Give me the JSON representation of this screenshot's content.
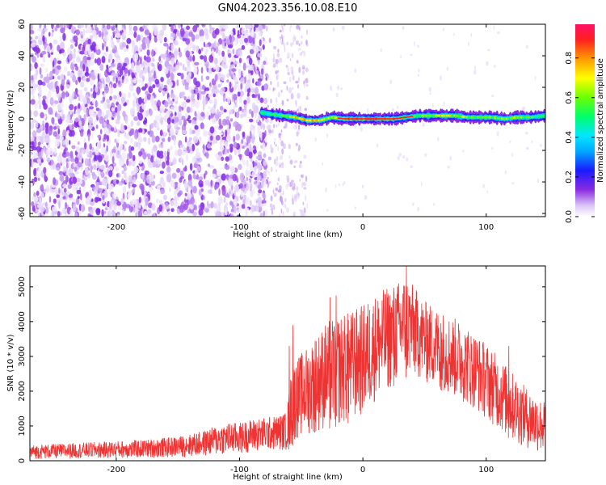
{
  "figure": {
    "title": "GN04.2023.356.10.08.E10"
  },
  "chart_data": [
    {
      "type": "heatmap",
      "title": "",
      "xlabel": "Height of straight line (km)",
      "ylabel": "Frequency (Hz)",
      "xlim": [
        -270,
        148
      ],
      "ylim": [
        -62,
        60
      ],
      "xticks": [
        -200,
        -100,
        0,
        100
      ],
      "xtick_labels": [
        "-200",
        "-100",
        "0",
        "100"
      ],
      "yticks": [
        -60,
        -40,
        -20,
        0,
        20,
        40,
        60
      ],
      "ytick_labels": [
        "-60",
        "-40",
        "-20",
        "0",
        "20",
        "40",
        "60"
      ],
      "grid": false,
      "colorbar": {
        "label": "Normalized spectral amplitude",
        "range": [
          0,
          0.97
        ],
        "ticks": [
          0,
          0.2,
          0.4,
          0.6,
          0.8
        ],
        "tick_labels": [
          "0.0",
          "0.2",
          "0.4",
          "0.6",
          "0.8"
        ],
        "colormap": "gist_rainbow_reversed"
      },
      "noise_region_x": [
        -270,
        -78
      ],
      "sparse_region_x": [
        -78,
        -45
      ],
      "signal_trace": {
        "x": [
          -82,
          -75,
          -65,
          -55,
          -45,
          -35,
          -25,
          -15,
          -5,
          5,
          15,
          25,
          35,
          45,
          55,
          65,
          75,
          85,
          95,
          105,
          115,
          125,
          135,
          148
        ],
        "frequency": [
          4,
          3,
          2,
          1,
          -1,
          -1,
          1,
          0,
          0,
          0,
          0,
          0,
          1,
          2,
          2,
          2,
          2,
          1,
          1,
          1,
          0,
          1,
          1,
          2
        ],
        "amplitude": [
          0.55,
          0.5,
          0.55,
          0.75,
          0.8,
          0.7,
          0.65,
          0.8,
          0.85,
          0.9,
          0.9,
          0.85,
          0.55,
          0.6,
          0.65,
          0.7,
          0.65,
          0.6,
          0.55,
          0.6,
          0.65,
          0.6,
          0.55,
          0.5
        ]
      }
    },
    {
      "type": "line",
      "title": "",
      "xlabel": "Height of straight line (km)",
      "ylabel": "SNR (10 * v/v)",
      "xlim": [
        -270,
        148
      ],
      "ylim": [
        0,
        5600
      ],
      "xticks": [
        -200,
        -100,
        0,
        100
      ],
      "xtick_labels": [
        "-200",
        "-100",
        "0",
        "100"
      ],
      "yticks": [
        0,
        1000,
        2000,
        3000,
        4000,
        5000
      ],
      "ytick_labels": [
        "0",
        "1000",
        "2000",
        "3000",
        "4000",
        "5000"
      ],
      "grid": false,
      "series": [
        {
          "color": "#ee3333",
          "envelope": {
            "x": [
              -270,
              -240,
              -210,
              -180,
              -150,
              -130,
              -120,
              -110,
              -100,
              -90,
              -80,
              -70,
              -62,
              -58,
              -55,
              -50,
              -40,
              -30,
              -20,
              -10,
              0,
              10,
              20,
              30,
              35,
              40,
              50,
              60,
              70,
              80,
              90,
              100,
              110,
              120,
              130,
              140,
              148
            ],
            "low": [
              50,
              60,
              70,
              80,
              100,
              130,
              150,
              200,
              200,
              250,
              300,
              300,
              300,
              350,
              600,
              700,
              800,
              900,
              1000,
              1100,
              1300,
              1700,
              2000,
              2300,
              2400,
              2400,
              2300,
              2100,
              1900,
              1700,
              1500,
              1200,
              900,
              600,
              400,
              250,
              200
            ],
            "high": [
              450,
              500,
              550,
              600,
              700,
              850,
              1000,
              1100,
              1100,
              1200,
              1250,
              1300,
              1400,
              2600,
              2900,
              3100,
              3500,
              4000,
              4200,
              4300,
              4500,
              4800,
              5000,
              5200,
              5400,
              5100,
              4600,
              4400,
              4200,
              4000,
              3700,
              3400,
              3000,
              2600,
              2200,
              1900,
              1700
            ],
            "spikes": [
              [
                -60,
                3300
              ],
              [
                -57,
                3900
              ],
              [
                -39,
                3450
              ],
              [
                -27,
                4700
              ],
              [
                -22,
                4750
              ],
              [
                -12,
                4050
              ],
              [
                25,
                4850
              ],
              [
                35,
                5600
              ],
              [
                52,
                4300
              ],
              [
                63,
                3950
              ],
              [
                118,
                3300
              ]
            ]
          }
        }
      ]
    }
  ]
}
